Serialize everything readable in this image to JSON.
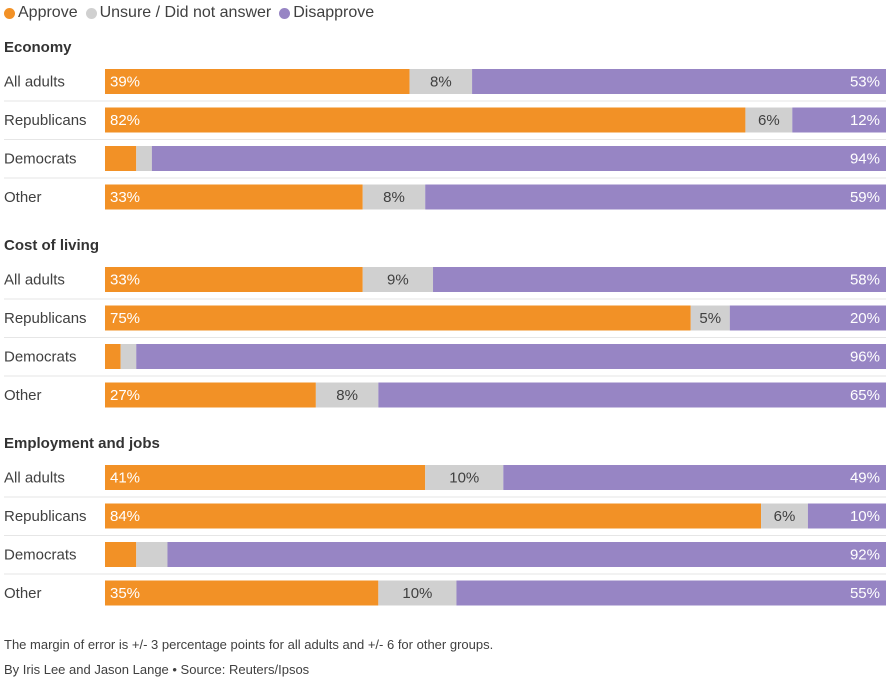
{
  "legend": {
    "approve": "Approve",
    "unsure": "Unsure / Did not answer",
    "disapprove": "Disapprove"
  },
  "colors": {
    "approve": "#f29126",
    "unsure": "#d0d0d0",
    "disapprove": "#9785c4",
    "divider": "#e6e6e6"
  },
  "chart_data": {
    "type": "bar",
    "orientation": "horizontal-stacked-100",
    "legend_position": "top-left",
    "xlim": [
      0,
      100
    ],
    "series_names": [
      "Approve",
      "Unsure / Did not answer",
      "Disapprove"
    ],
    "groups": [
      {
        "title": "Economy",
        "rows": [
          {
            "label": "All adults",
            "values": [
              39,
              8,
              53
            ],
            "labels": [
              "39%",
              "8%",
              "53%"
            ]
          },
          {
            "label": "Republicans",
            "values": [
              82,
              6,
              12
            ],
            "labels": [
              "82%",
              "6%",
              "12%"
            ]
          },
          {
            "label": "Democrats",
            "values": [
              4,
              2,
              94
            ],
            "labels": [
              "",
              "",
              "94%"
            ]
          },
          {
            "label": "Other",
            "values": [
              33,
              8,
              59
            ],
            "labels": [
              "33%",
              "8%",
              "59%"
            ]
          }
        ]
      },
      {
        "title": "Cost of living",
        "rows": [
          {
            "label": "All adults",
            "values": [
              33,
              9,
              58
            ],
            "labels": [
              "33%",
              "9%",
              "58%"
            ]
          },
          {
            "label": "Republicans",
            "values": [
              75,
              5,
              20
            ],
            "labels": [
              "75%",
              "5%",
              "20%"
            ]
          },
          {
            "label": "Democrats",
            "values": [
              2,
              2,
              96
            ],
            "labels": [
              "",
              "",
              "96%"
            ]
          },
          {
            "label": "Other",
            "values": [
              27,
              8,
              65
            ],
            "labels": [
              "27%",
              "8%",
              "65%"
            ]
          }
        ]
      },
      {
        "title": "Employment and jobs",
        "rows": [
          {
            "label": "All adults",
            "values": [
              41,
              10,
              49
            ],
            "labels": [
              "41%",
              "10%",
              "49%"
            ]
          },
          {
            "label": "Republicans",
            "values": [
              84,
              6,
              10
            ],
            "labels": [
              "84%",
              "6%",
              "10%"
            ]
          },
          {
            "label": "Democrats",
            "values": [
              4,
              4,
              92
            ],
            "labels": [
              "",
              "",
              "92%"
            ]
          },
          {
            "label": "Other",
            "values": [
              35,
              10,
              55
            ],
            "labels": [
              "35%",
              "10%",
              "55%"
            ]
          }
        ]
      }
    ]
  },
  "footer": {
    "note": "The margin of error is +/- 3 percentage points for all adults and +/- 6 for other groups.",
    "credit": "By Iris Lee and Jason Lange • Source: Reuters/Ipsos"
  }
}
